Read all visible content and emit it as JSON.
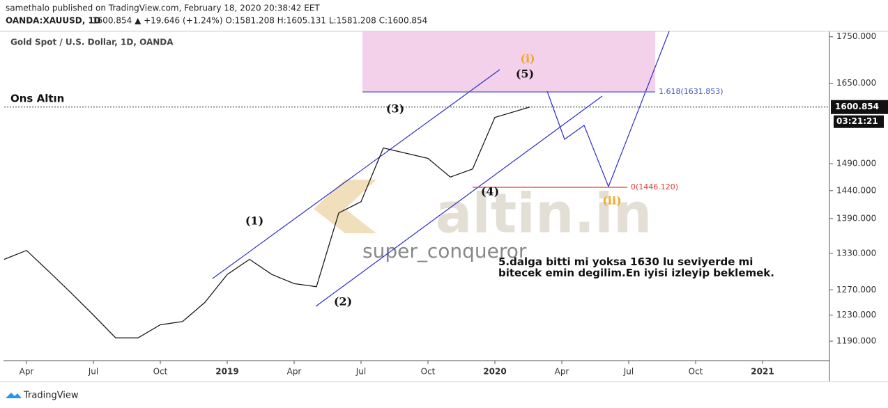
{
  "chart_data": {
    "type": "line",
    "header": "samethalo published on TradingView.com, February 18, 2020 20:38:42 EET",
    "symbol": "OANDA:XAUUSD, 1D",
    "quote": "1600.854 ▲ +19.646 (+1.24%) O:1581.208 H:1605.131 L:1581.208 C:1600.854",
    "title": "Gold Spot / U.S. Dollar, 1D, OANDA",
    "label": "Ons Altın",
    "note": "5.dalga bitti mi yoksa 1630 lu seviyerde mi bitecek emin degilim.En iyisi izleyip beklemek.",
    "watermark": "altin.in",
    "watermark2": "super_conqueror",
    "footer": "TradingView",
    "waves": [
      "(1)",
      "(2)",
      "(3)",
      "(4)",
      "(5)",
      "(i)",
      "(ii)"
    ],
    "levels": [
      {
        "value": 1631.853,
        "label": "1.618(1631.853)",
        "color": "#3f51c8"
      },
      {
        "value": 1446.12,
        "label": "0(1446.120)",
        "color": "#e53935"
      }
    ],
    "last": {
      "value": 1600.854,
      "label": "1600.854"
    },
    "countdown": "03:21:21",
    "log_scale": true,
    "x": [
      "2018-03",
      "2018-04",
      "2018-05",
      "2018-06",
      "2018-07",
      "2018-08",
      "2018-09",
      "2018-10",
      "2018-11",
      "2018-12",
      "2019-01",
      "2019-02",
      "2019-03",
      "2019-04",
      "2019-05",
      "2019-06",
      "2019-07",
      "2019-08",
      "2019-09",
      "2019-10",
      "2019-11",
      "2019-12",
      "2020-01",
      "2020-02-18"
    ],
    "series": [
      {
        "name": "XAUUSD",
        "color": "#1a1a1a",
        "values": [
          1320,
          1335,
          1300,
          1265,
          1230,
          1195,
          1195,
          1215,
          1220,
          1250,
          1295,
          1320,
          1295,
          1280,
          1275,
          1400,
          1420,
          1520,
          1510,
          1500,
          1465,
          1480,
          1580,
          1600.854
        ]
      }
    ],
    "xlim": [
      "2018-03",
      "2021-04"
    ],
    "xticks": [
      {
        "value": "2018-04",
        "label": "Apr"
      },
      {
        "value": "2018-07",
        "label": "Jul"
      },
      {
        "value": "2018-10",
        "label": "Oct"
      },
      {
        "value": "2019-01",
        "label": "2019"
      },
      {
        "value": "2019-04",
        "label": "Apr"
      },
      {
        "value": "2019-07",
        "label": "Jul"
      },
      {
        "value": "2019-10",
        "label": "Oct"
      },
      {
        "value": "2020-01",
        "label": "2020"
      },
      {
        "value": "2020-04",
        "label": "Apr"
      },
      {
        "value": "2020-07",
        "label": "Jul"
      },
      {
        "value": "2020-10",
        "label": "Oct"
      },
      {
        "value": "2021-01",
        "label": "2021"
      }
    ],
    "ylim": [
      1161,
      1762
    ],
    "yticks": [
      {
        "value": 1190,
        "label": "1190.000"
      },
      {
        "value": 1230,
        "label": "1230.000"
      },
      {
        "value": 1270,
        "label": "1270.000"
      },
      {
        "value": 1330,
        "label": "1330.000"
      },
      {
        "value": 1390,
        "label": "1390.000"
      },
      {
        "value": 1440,
        "label": "1440.000"
      },
      {
        "value": 1490,
        "label": "1490.000"
      },
      {
        "value": 1650,
        "label": "1650.000"
      },
      {
        "value": 1750,
        "label": "1750.000"
      }
    ]
  }
}
